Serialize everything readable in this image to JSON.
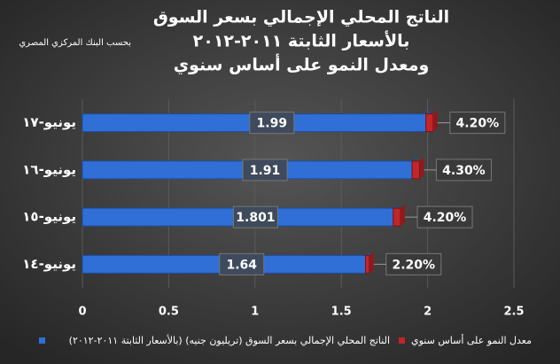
{
  "chart_data": {
    "type": "stacked-bar-horizontal",
    "title": [
      "الناتج المحلي الإجمالي بسعر السوق",
      "بالأسعار الثابتة ٢٠١١-٢٠١٢",
      "ومعدل النمو على أساس سنوي"
    ],
    "subtitle": "بحسب البنك المركزي المصري",
    "categories": [
      "يونيو-١٤",
      "يونيو-١٥",
      "يونيو-١٦",
      "يونيو-١٧"
    ],
    "series": [
      {
        "name": "الناتج المحلي الإجمالي بسعر السوق (تريليون جنيه) (بالأسعار الثابتة ٢٠١١-٢٠١٢)",
        "color": "#2f6fd6",
        "values": [
          1.64,
          1.801,
          1.91,
          1.99
        ]
      },
      {
        "name": "معدل النمو على أساس سنوي",
        "color": "#c0262a",
        "values": [
          0.022,
          0.042,
          0.043,
          0.042
        ],
        "value_labels": [
          "2.20%",
          "4.20%",
          "4.30%",
          "4.20%"
        ]
      }
    ],
    "xlim": [
      0,
      2.5
    ],
    "xticks": [
      0,
      0.5,
      1,
      1.5,
      2,
      2.5
    ],
    "grid": true
  }
}
